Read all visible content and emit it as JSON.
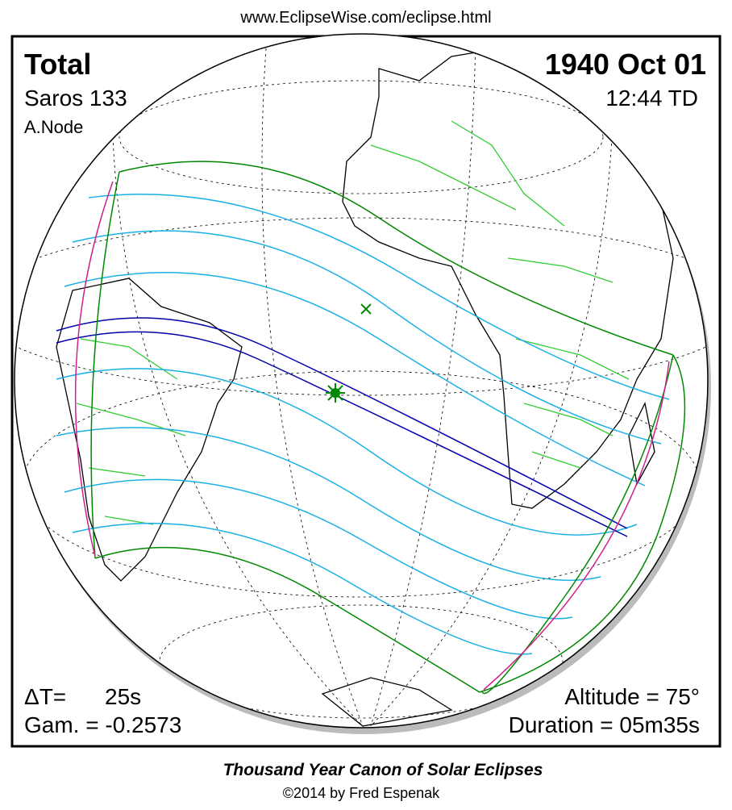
{
  "header": {
    "url": "www.EclipseWise.com/eclipse.html"
  },
  "eclipse": {
    "type": "Total",
    "date": "1940 Oct 01",
    "saros": "Saros 133",
    "time": "12:44 TD",
    "node": "A.Node",
    "delta_t_label": "ΔT=",
    "delta_t": "25s",
    "gamma": "Gam. = -0.2573",
    "altitude": "Altitude = 75°",
    "duration": "Duration = 05m35s"
  },
  "footer": {
    "title": "Thousand Year Canon of Solar Eclipses",
    "credit": "©2014 by Fred Espenak"
  }
}
